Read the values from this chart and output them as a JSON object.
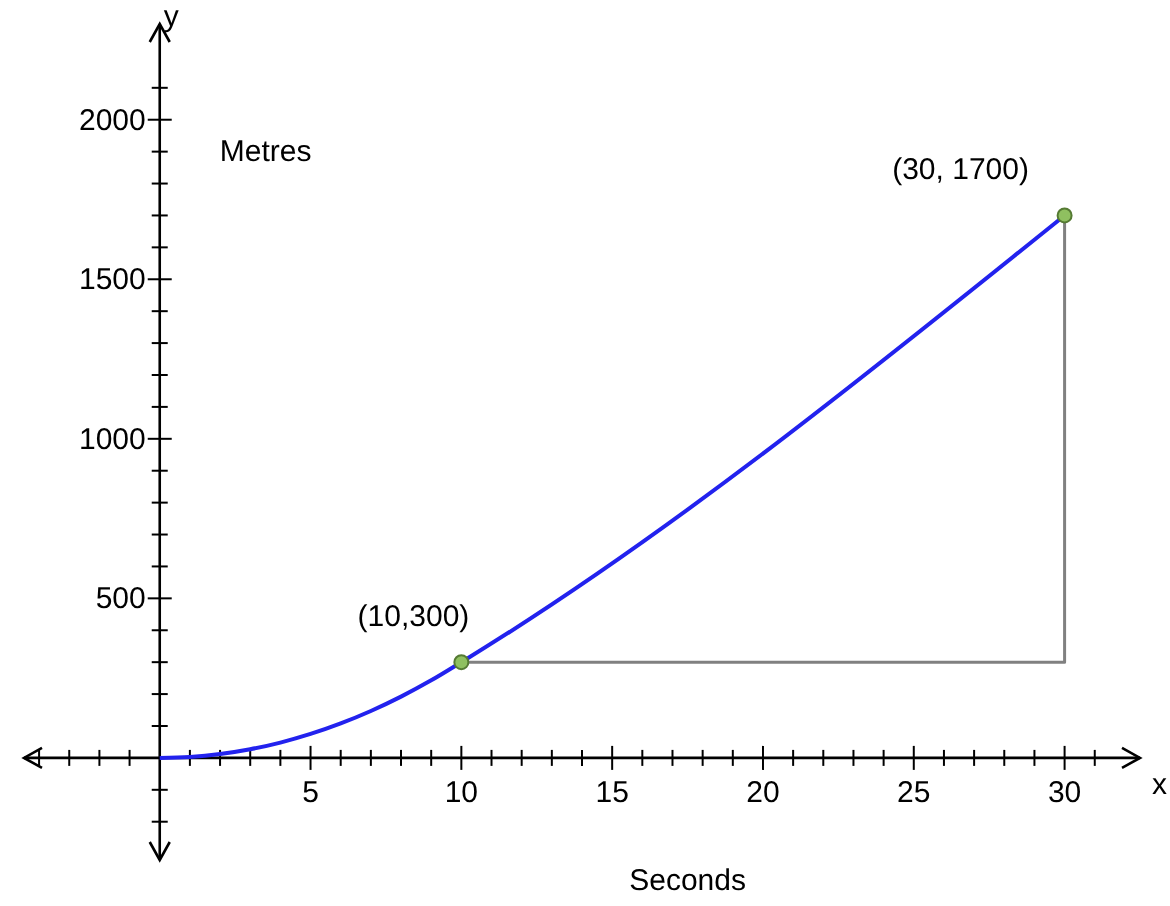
{
  "chart_data": {
    "type": "line",
    "xlabel": "Seconds",
    "ylabel": "Metres",
    "xlim": [
      -4.5,
      32.5
    ],
    "ylim": [
      -320,
      2300
    ],
    "xticks": [
      {
        "value": -4,
        "label": null
      },
      {
        "value": -3,
        "label": null
      },
      {
        "value": -2,
        "label": null
      },
      {
        "value": -1,
        "label": null
      },
      {
        "value": 1,
        "label": null
      },
      {
        "value": 2,
        "label": null
      },
      {
        "value": 3,
        "label": null
      },
      {
        "value": 4,
        "label": null
      },
      5,
      {
        "value": 6,
        "label": null
      },
      {
        "value": 7,
        "label": null
      },
      {
        "value": 8,
        "label": null
      },
      {
        "value": 9,
        "label": null
      },
      10,
      {
        "value": 11,
        "label": null
      },
      {
        "value": 12,
        "label": null
      },
      {
        "value": 13,
        "label": null
      },
      {
        "value": 14,
        "label": null
      },
      15,
      {
        "value": 16,
        "label": null
      },
      {
        "value": 17,
        "label": null
      },
      {
        "value": 18,
        "label": null
      },
      {
        "value": 19,
        "label": null
      },
      20,
      {
        "value": 21,
        "label": null
      },
      {
        "value": 22,
        "label": null
      },
      {
        "value": 23,
        "label": null
      },
      {
        "value": 24,
        "label": null
      },
      25,
      {
        "value": 26,
        "label": null
      },
      {
        "value": 27,
        "label": null
      },
      {
        "value": 28,
        "label": null
      },
      {
        "value": 29,
        "label": null
      },
      30,
      {
        "value": 31,
        "label": null
      }
    ],
    "yticks": [
      {
        "value": -200,
        "label": null
      },
      {
        "value": -100,
        "label": null
      },
      {
        "value": 100,
        "label": null
      },
      {
        "value": 200,
        "label": null
      },
      {
        "value": 300,
        "label": null
      },
      {
        "value": 400,
        "label": null
      },
      500,
      {
        "value": 600,
        "label": null
      },
      {
        "value": 700,
        "label": null
      },
      {
        "value": 800,
        "label": null
      },
      {
        "value": 900,
        "label": null
      },
      1000,
      {
        "value": 1100,
        "label": null
      },
      {
        "value": 1200,
        "label": null
      },
      {
        "value": 1300,
        "label": null
      },
      {
        "value": 1400,
        "label": null
      },
      1500,
      {
        "value": 1600,
        "label": null
      },
      {
        "value": 1700,
        "label": null
      },
      {
        "value": 1800,
        "label": null
      },
      {
        "value": 1900,
        "label": null
      },
      2000,
      {
        "value": 2100,
        "label": null
      }
    ],
    "grid": false,
    "series": [
      {
        "color": "#2222ee",
        "x": [
          0,
          1,
          2,
          3,
          4,
          5,
          6,
          7,
          8,
          9,
          10,
          30
        ],
        "values": [
          0,
          3,
          12,
          27,
          48,
          75,
          108,
          147,
          192,
          243,
          300,
          1700
        ]
      },
      {
        "color": "#808080",
        "x": [
          10,
          30,
          30
        ],
        "values": [
          300,
          300,
          1700
        ]
      },
      {
        "type": "scatter",
        "color": "#8fc060",
        "marker": "circle",
        "x": [
          10,
          30
        ],
        "values": [
          300,
          1700
        ]
      }
    ],
    "annotations": [
      "x",
      "y",
      {
        "text": "(10,300)",
        "x": 10,
        "y": 300
      },
      {
        "text": "(30, 1700)",
        "x": 30,
        "y": 1700
      }
    ]
  }
}
